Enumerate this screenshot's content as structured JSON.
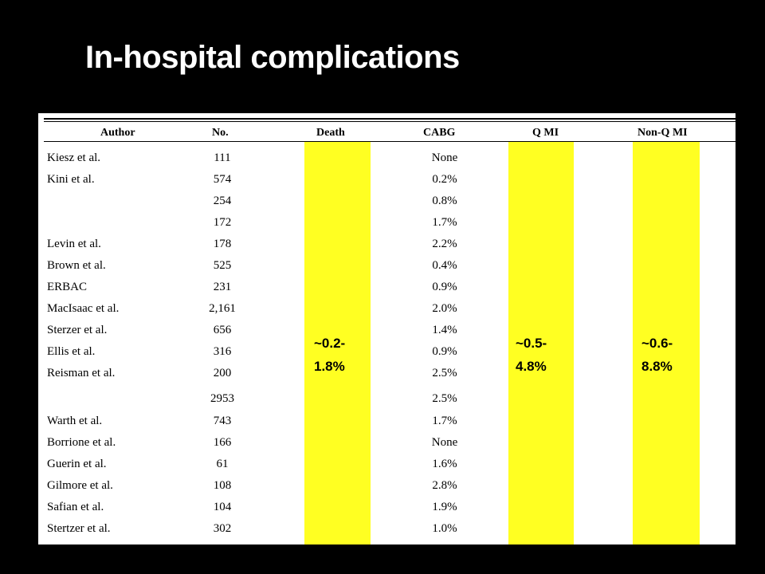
{
  "title": "In-hospital complications",
  "table": {
    "headers": {
      "author": "Author",
      "no": "No.",
      "death": "Death",
      "cabg": "CABG",
      "qmi": "Q MI",
      "nonqmi": "Non-Q MI"
    },
    "rows": [
      {
        "author": "Kiesz et al.",
        "no": "111",
        "cabg": "None"
      },
      {
        "author": "Kini et al.",
        "no": "574",
        "cabg": "0.2%"
      },
      {
        "author": "",
        "no": "254",
        "cabg": "0.8%"
      },
      {
        "author": "",
        "no": "172",
        "cabg": "1.7%"
      },
      {
        "author": "Levin et al.",
        "no": "178",
        "cabg": "2.2%"
      },
      {
        "author": "Brown et al.",
        "no": "525",
        "cabg": "0.4%"
      },
      {
        "author": "ERBAC",
        "no": "231",
        "cabg": "0.9%"
      },
      {
        "author": "MacIsaac et al.",
        "no": "2,161",
        "cabg": "2.0%"
      },
      {
        "author": "Sterzer et al.",
        "no": "656",
        "cabg": "1.4%"
      },
      {
        "author": "Ellis et al.",
        "no": "316",
        "cabg": "0.9%"
      },
      {
        "author": "Reisman et al.",
        "no": "200",
        "cabg": "2.5%"
      },
      {
        "author": "",
        "no": "2953",
        "cabg": "2.5%"
      },
      {
        "author": "Warth et al.",
        "no": "743",
        "cabg": "1.7%"
      },
      {
        "author": "Borrione et al.",
        "no": "166",
        "cabg": "None"
      },
      {
        "author": "Guerin et al.",
        "no": "61",
        "cabg": "1.6%"
      },
      {
        "author": "Gilmore et al.",
        "no": "108",
        "cabg": "2.8%"
      },
      {
        "author": "Safian et al.",
        "no": "104",
        "cabg": "1.9%"
      },
      {
        "author": "Stertzer et al.",
        "no": "302",
        "cabg": "1.0%"
      }
    ],
    "ranges": {
      "death": [
        "~0.2-",
        "1.8%"
      ],
      "qmi": [
        "~0.5-",
        "4.8%"
      ],
      "nonqmi": [
        "~0.6-",
        "8.8%"
      ]
    }
  },
  "colors": {
    "background": "#000000",
    "highlight": "#ffff22",
    "title": "#ffffff"
  }
}
